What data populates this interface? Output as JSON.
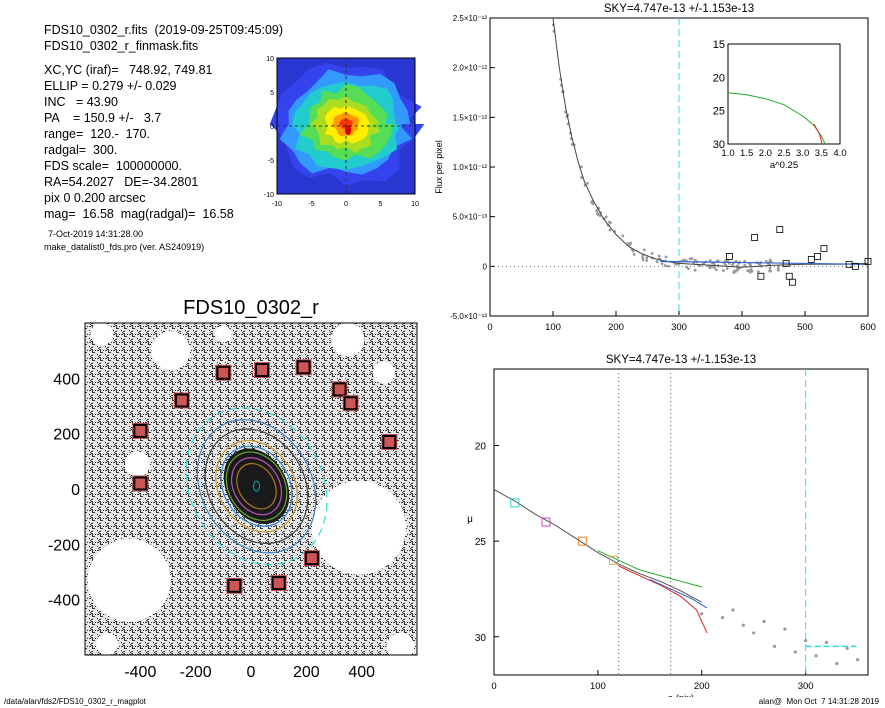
{
  "header": {
    "lines": [
      "FDS10_0302_r.fits  (2019-09-25T09:45:09)",
      "FDS10_0302_r_finmask.fits",
      "",
      "XC,YC (iraf)=   748.92, 749.81",
      "ELLIP = 0.279 +/- 0.029",
      "INC   = 43.90",
      "PA    = 150.9 +/-   3.7",
      "range=  120.-  170.",
      "radgal=  300.",
      "FDS scale=  100000000.",
      "RA=54.2027   DE=-34.2801",
      "pix 0 0.200 arcsec",
      "mag=  16.58  mag(radgal)=  16.58"
    ],
    "date": "7-Oct-2019 14:31:28.00",
    "version": "make_datalist0_fds.pro (ver. AS240919)"
  },
  "footer": {
    "path": "/data/alan/fds2/FDS10_0302_r_magplot",
    "stamp": "alan@  Mon Oct  7 14:31:28 2019"
  },
  "colors": {
    "dashed_cyan": "#33dddd",
    "mask_square": "#aa1111",
    "grey_points": "#999999"
  },
  "chart_data": [
    {
      "id": "center_map",
      "type": "heatmap",
      "xlim": [
        -10,
        10
      ],
      "ylim": [
        -10,
        10
      ],
      "xticks": [
        "-10",
        "-5",
        "0",
        "5",
        "10"
      ],
      "yticks": [
        "10",
        "5",
        "0",
        "-5",
        "-10"
      ]
    },
    {
      "id": "flux_profile",
      "type": "scatter",
      "title": "SKY=4.747e-13 +/-1.153e-13",
      "ylabel": "Flux per pixel",
      "xlim": [
        0,
        600
      ],
      "ylim": [
        -5e-13,
        2.5e-12
      ],
      "xticks": [
        "0",
        "100",
        "200",
        "300",
        "400",
        "500",
        "600"
      ],
      "yticks": [
        "-5.0×10⁻¹³",
        "0",
        "5.0×10⁻¹³",
        "1.0×10⁻¹²",
        "1.5×10⁻¹²",
        "2.0×10⁻¹²",
        "2.5×10⁻¹²"
      ],
      "sky_radius": 300,
      "series": [
        {
          "x": [
            100,
            110,
            120,
            130,
            140,
            150,
            165,
            180,
            200,
            220,
            240,
            260,
            280,
            300,
            350,
            400,
            450,
            500,
            550,
            600
          ],
          "y": [
            2.5e-12,
            2e-12,
            1.6e-12,
            1.3e-12,
            1.05e-12,
            8.5e-13,
            6.5e-13,
            4.8e-13,
            3.2e-13,
            2e-13,
            1.3e-13,
            8e-14,
            5e-14,
            3e-14,
            1e-14,
            -1e-14,
            1e-14,
            2e-14,
            2e-14,
            3e-14
          ]
        }
      ],
      "boxes": {
        "x": [
          380,
          420,
          430,
          460,
          470,
          475,
          480,
          510,
          520,
          530,
          570,
          580,
          600
        ],
        "y": [
          1e-13,
          2.9e-13,
          -1e-13,
          3.7e-13,
          3e-14,
          -1e-13,
          -1.6e-13,
          7e-14,
          1e-13,
          1.8e-13,
          2e-14,
          0.0,
          5e-14
        ]
      },
      "inset": {
        "xlabel": "a^0.25",
        "xlim": [
          1.0,
          4.0
        ],
        "ylim": [
          30,
          15
        ],
        "xticks": [
          "1.0",
          "1.5",
          "2.0",
          "2.5",
          "3.0",
          "3.5",
          "4.0"
        ],
        "yticks": [
          "15",
          "20",
          "25",
          "30"
        ],
        "x": [
          1.0,
          1.5,
          2.0,
          2.5,
          3.0,
          3.3,
          3.5,
          3.6
        ],
        "y": [
          22.3,
          22.6,
          23.2,
          24.1,
          25.8,
          27.2,
          28.8,
          30.0
        ]
      }
    },
    {
      "id": "galaxy_image",
      "type": "heatmap",
      "title": "FDS10_0302_r",
      "xlim": [
        -600,
        600
      ],
      "ylim": [
        -600,
        600
      ],
      "xticks": [
        "-400",
        "-200",
        "0",
        "200",
        "400"
      ],
      "yticks": [
        "400",
        "200",
        "0",
        "-200",
        "-400"
      ],
      "mask_x": [
        -100,
        40,
        190,
        320,
        360,
        -250,
        -400,
        500,
        -400,
        220,
        -60,
        100
      ],
      "mask_y": [
        420,
        430,
        440,
        360,
        310,
        320,
        210,
        170,
        20,
        -250,
        -350,
        -340
      ]
    },
    {
      "id": "surface_brightness",
      "type": "line",
      "title": "SKY=4.747e-13 +/-1.153e-13",
      "xlabel": "a (pix)",
      "ylabel": "μ",
      "xlim": [
        0,
        360
      ],
      "ylim": [
        32,
        16
      ],
      "xticks": [
        "0",
        "100",
        "200",
        "300"
      ],
      "yticks": [
        "20",
        "25",
        "30"
      ],
      "range_lines": [
        120,
        170
      ],
      "sky_radius": 300,
      "series": [
        {
          "name": "",
          "color": "#555555",
          "x": [
            0,
            20,
            40,
            60,
            80,
            100,
            120,
            140,
            160,
            180,
            200
          ],
          "y": [
            22.3,
            22.9,
            23.6,
            24.2,
            24.9,
            25.6,
            26.2,
            26.7,
            27.1,
            27.6,
            28.2
          ]
        },
        {
          "name": "",
          "color": "#22aa22",
          "x": [
            100,
            120,
            140,
            160,
            180,
            200
          ],
          "y": [
            25.5,
            26.0,
            26.5,
            26.8,
            27.1,
            27.4
          ]
        },
        {
          "name": "",
          "color": "#dd2222",
          "x": [
            120,
            140,
            160,
            180,
            195,
            205
          ],
          "y": [
            26.3,
            26.8,
            27.3,
            27.9,
            28.6,
            29.8
          ]
        },
        {
          "name": "",
          "color": "#3366cc",
          "x": [
            150,
            170,
            190,
            205
          ],
          "y": [
            27.0,
            27.5,
            28.0,
            28.5
          ]
        }
      ],
      "scatter": {
        "x": [
          200,
          220,
          230,
          240,
          250,
          260,
          270,
          280,
          290,
          300,
          310,
          320,
          330,
          340,
          350
        ],
        "y": [
          28.8,
          29.0,
          28.6,
          29.4,
          29.8,
          29.2,
          30.5,
          29.6,
          30.8,
          30.2,
          31.0,
          30.3,
          31.4,
          30.6,
          31.2
        ]
      },
      "markers": {
        "x": [
          20,
          50,
          85,
          115
        ],
        "y": [
          23.0,
          24.0,
          25.0,
          26.0
        ]
      },
      "sky_level": 30.5
    }
  ]
}
